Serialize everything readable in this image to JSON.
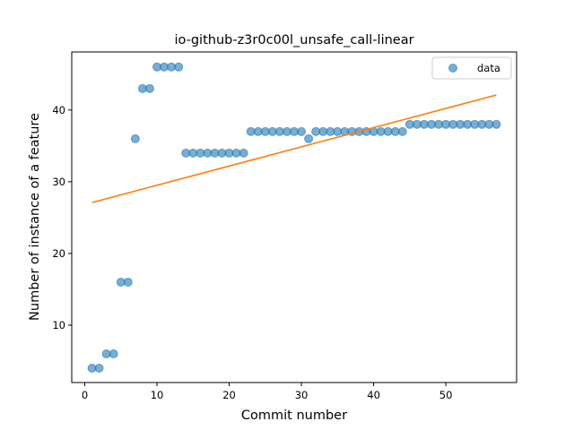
{
  "chart_data": {
    "type": "scatter",
    "title": "io-github-z3r0c00l_unsafe_call-linear",
    "xlabel": "Commit number",
    "ylabel": "Number of instance of a feature",
    "xlim": [
      -1.8,
      59.8
    ],
    "ylim": [
      2.0,
      48.1
    ],
    "xticks": [
      0,
      10,
      20,
      30,
      40,
      50
    ],
    "yticks": [
      10,
      20,
      30,
      40
    ],
    "grid": false,
    "legend_position": "top-right",
    "series": [
      {
        "name": "data",
        "kind": "scatter",
        "color": "#1f77b4",
        "x": [
          1,
          2,
          3,
          4,
          5,
          6,
          7,
          8,
          9,
          10,
          11,
          12,
          13,
          14,
          15,
          16,
          17,
          18,
          19,
          20,
          21,
          22,
          23,
          24,
          25,
          26,
          27,
          28,
          29,
          30,
          31,
          32,
          33,
          34,
          35,
          36,
          37,
          38,
          39,
          40,
          41,
          42,
          43,
          44,
          45,
          46,
          47,
          48,
          49,
          50,
          51,
          52,
          53,
          54,
          55,
          56,
          57
        ],
        "y": [
          4,
          4,
          6,
          6,
          16,
          16,
          36,
          43,
          43,
          46,
          46,
          46,
          46,
          34,
          34,
          34,
          34,
          34,
          34,
          34,
          34,
          34,
          37,
          37,
          37,
          37,
          37,
          37,
          37,
          37,
          36,
          37,
          37,
          37,
          37,
          37,
          37,
          37,
          37,
          37,
          37,
          37,
          37,
          37,
          38,
          38,
          38,
          38,
          38,
          38,
          38,
          38,
          38,
          38,
          38,
          38,
          38
        ]
      },
      {
        "kind": "line",
        "color": "#ff7f0e",
        "x": [
          1,
          57
        ],
        "y": [
          27.1,
          42.1
        ]
      }
    ]
  }
}
